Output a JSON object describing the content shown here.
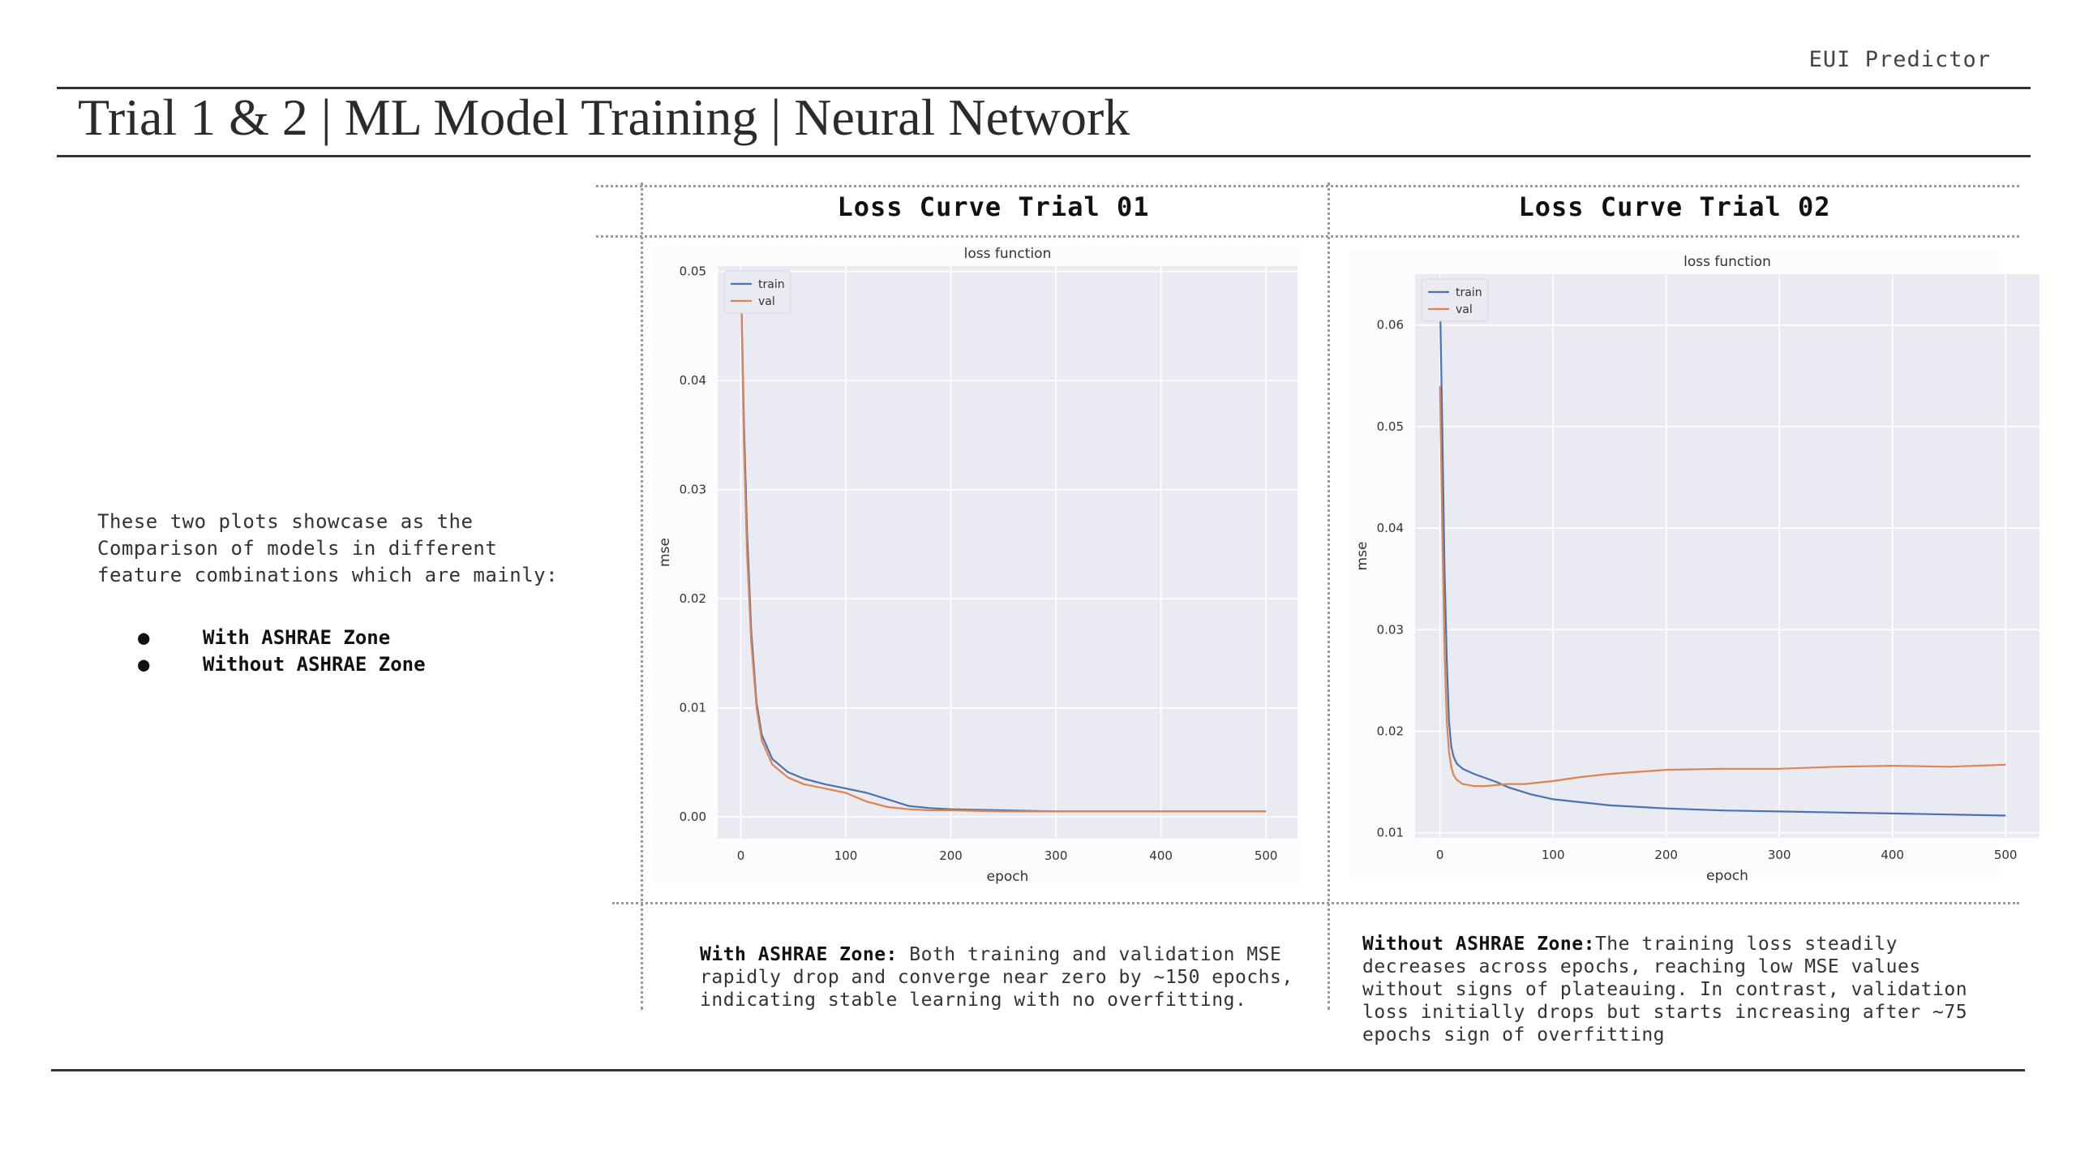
{
  "header": {
    "brand": "EUI Predictor",
    "title": "Trial 1 & 2 | ML Model Training | Neural Network"
  },
  "intro": {
    "text": "These two plots showcase as the Comparison of models in different feature combinations which are mainly:",
    "bullets": [
      "With ASHRAE Zone",
      "Without ASHRAE Zone"
    ]
  },
  "panels": [
    {
      "heading": "Loss Curve Trial 01",
      "desc_lead": "With ASHRAE Zone:",
      "desc_body": " Both training and validation MSE rapidly drop and converge near zero by ~150 epochs, indicating stable learning with no overfitting."
    },
    {
      "heading": "Loss Curve Trial 02",
      "desc_lead": "Without ASHRAE Zone:",
      "desc_body": "The training loss steadily decreases across epochs, reaching low MSE values without signs of plateauing.  In contrast, validation loss initially drops but starts increasing after ~75 epochs sign of overfitting"
    }
  ],
  "colors": {
    "train": "#4c72b0",
    "val": "#dd8452",
    "plot_bg": "#eaeaf2",
    "grid": "#ffffff"
  },
  "chart_data": [
    {
      "type": "line",
      "title": "loss function",
      "xlabel": "epoch",
      "ylabel": "mse",
      "xlim": [
        -22,
        530
      ],
      "ylim": [
        -0.002,
        0.0505
      ],
      "xticks": [
        0,
        100,
        200,
        300,
        400,
        500
      ],
      "yticks": [
        0.0,
        0.01,
        0.02,
        0.03,
        0.04,
        0.05
      ],
      "ytick_labels": [
        "0.00",
        "0.01",
        "0.02",
        "0.03",
        "0.04",
        "0.05"
      ],
      "legend": "top-left",
      "grid": true,
      "series": [
        {
          "name": "train",
          "x": [
            0,
            3,
            6,
            10,
            15,
            20,
            30,
            45,
            60,
            80,
            100,
            120,
            140,
            160,
            180,
            200,
            250,
            300,
            400,
            500
          ],
          "y": [
            0.05,
            0.036,
            0.026,
            0.017,
            0.0105,
            0.0075,
            0.0053,
            0.0041,
            0.0035,
            0.003,
            0.0026,
            0.0022,
            0.0016,
            0.001,
            0.0008,
            0.0007,
            0.0006,
            0.0005,
            0.0005,
            0.0005
          ]
        },
        {
          "name": "val",
          "x": [
            0,
            3,
            6,
            10,
            15,
            20,
            30,
            45,
            60,
            80,
            100,
            120,
            140,
            160,
            180,
            200,
            250,
            300,
            400,
            500
          ],
          "y": [
            0.05,
            0.034,
            0.024,
            0.016,
            0.01,
            0.007,
            0.0048,
            0.0036,
            0.003,
            0.0026,
            0.0022,
            0.0014,
            0.0009,
            0.0007,
            0.0006,
            0.0006,
            0.0005,
            0.0005,
            0.0005,
            0.0005
          ]
        }
      ]
    },
    {
      "type": "line",
      "title": "loss function",
      "xlabel": "epoch",
      "ylabel": "mse",
      "xlim": [
        -22,
        530
      ],
      "ylim": [
        0.0095,
        0.065
      ],
      "xticks": [
        0,
        100,
        200,
        300,
        400,
        500
      ],
      "yticks": [
        0.01,
        0.02,
        0.03,
        0.04,
        0.05,
        0.06
      ],
      "ytick_labels": [
        "0.01",
        "0.02",
        "0.03",
        "0.04",
        "0.05",
        "0.06"
      ],
      "legend": "top-left",
      "grid": true,
      "series": [
        {
          "name": "train",
          "x": [
            0,
            2,
            4,
            6,
            8,
            10,
            12,
            15,
            20,
            30,
            40,
            50,
            60,
            80,
            100,
            150,
            200,
            250,
            300,
            350,
            400,
            450,
            500
          ],
          "y": [
            0.063,
            0.05,
            0.036,
            0.027,
            0.021,
            0.0185,
            0.0175,
            0.0168,
            0.0163,
            0.0158,
            0.0154,
            0.015,
            0.0145,
            0.0138,
            0.0133,
            0.0127,
            0.0124,
            0.0122,
            0.0121,
            0.012,
            0.0119,
            0.0118,
            0.0117
          ]
        },
        {
          "name": "val",
          "x": [
            0,
            2,
            4,
            6,
            8,
            10,
            12,
            15,
            20,
            30,
            40,
            50,
            60,
            75,
            100,
            125,
            150,
            200,
            250,
            300,
            350,
            400,
            450,
            500
          ],
          "y": [
            0.054,
            0.04,
            0.028,
            0.021,
            0.018,
            0.0165,
            0.0157,
            0.0152,
            0.0148,
            0.0146,
            0.0146,
            0.0147,
            0.0148,
            0.0148,
            0.0151,
            0.0155,
            0.0158,
            0.0162,
            0.0163,
            0.0163,
            0.0165,
            0.0166,
            0.0165,
            0.0167
          ]
        }
      ]
    }
  ]
}
